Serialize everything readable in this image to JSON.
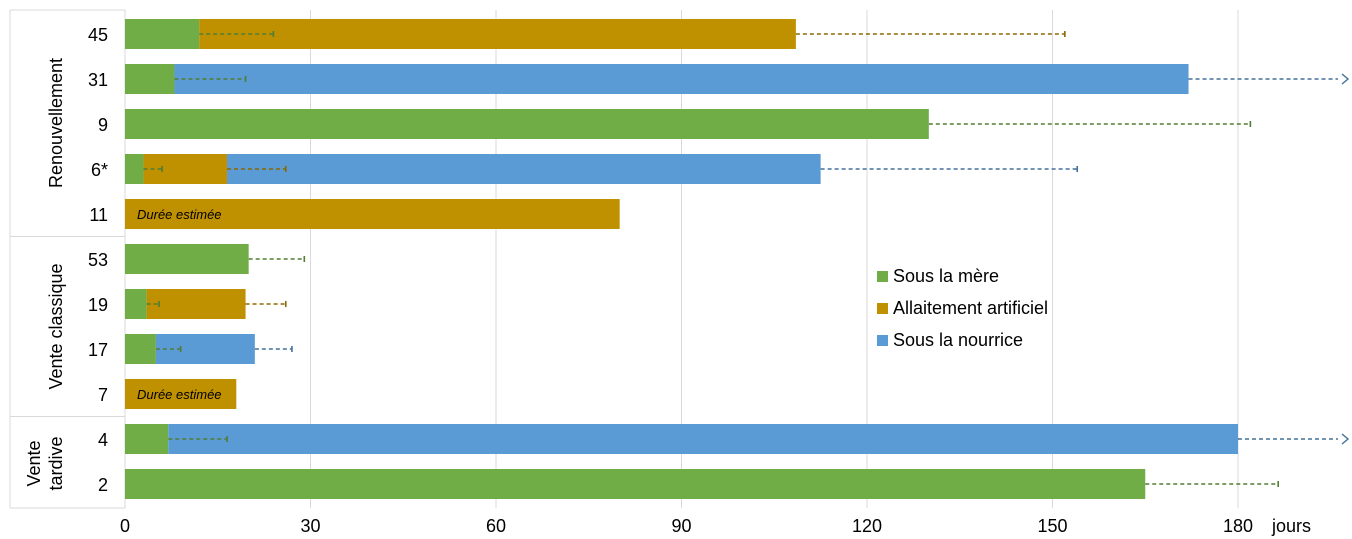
{
  "chart_data": {
    "type": "bar",
    "orientation": "horizontal",
    "stacked": true,
    "xlabel": "jours",
    "xlim": [
      0,
      180
    ],
    "xticks": [
      0,
      30,
      60,
      90,
      120,
      150,
      180
    ],
    "grid": true,
    "legend_position": "center-right",
    "colors": {
      "Sous la mère": "#70AD47",
      "Allaitement artificiel": "#BF9000",
      "Sous la nourrice": "#5B9BD5"
    },
    "series_names": [
      "Sous la mère",
      "Allaitement artificiel",
      "Sous la nourrice"
    ],
    "groups": [
      {
        "label": "Renouvellement",
        "rows": [
          0,
          1,
          2,
          3,
          4
        ]
      },
      {
        "label": "Vente classique",
        "rows": [
          5,
          6,
          7,
          8
        ]
      },
      {
        "label": "Vente tardive",
        "label_lines": [
          "Vente",
          "tardive"
        ],
        "rows": [
          9,
          10
        ]
      }
    ],
    "rows": [
      {
        "label": "45",
        "segments": [
          {
            "series": "Sous la mère",
            "value": 12
          },
          {
            "series": "Allaitement artificiel",
            "value": 96.5
          }
        ],
        "error_bars": [
          {
            "series": "Sous la mère",
            "to": 24
          },
          {
            "series": "Allaitement artificiel",
            "to": 152
          }
        ]
      },
      {
        "label": "31",
        "segments": [
          {
            "series": "Sous la mère",
            "value": 8
          },
          {
            "series": "Sous la nourrice",
            "value": 164
          }
        ],
        "error_bars": [
          {
            "series": "Sous la mère",
            "to": 19.5
          },
          {
            "series": "Sous la nourrice",
            "to": 198,
            "open_ended": true
          }
        ]
      },
      {
        "label": "9",
        "segments": [
          {
            "series": "Sous la mère",
            "value": 130
          }
        ],
        "error_bars": [
          {
            "series": "Sous la mère",
            "to": 182
          }
        ]
      },
      {
        "label": "6*",
        "segments": [
          {
            "series": "Sous la mère",
            "value": 3
          },
          {
            "series": "Allaitement artificiel",
            "value": 13.5
          },
          {
            "series": "Sous la nourrice",
            "value": 96
          }
        ],
        "error_bars": [
          {
            "series": "Sous la mère",
            "to": 6
          },
          {
            "series": "Allaitement artificiel",
            "to": 26
          },
          {
            "series": "Sous la nourrice",
            "to": 154
          }
        ]
      },
      {
        "label": "11",
        "note": "Durée estimée",
        "segments": [
          {
            "series": "Allaitement artificiel",
            "value": 80
          }
        ],
        "error_bars": []
      },
      {
        "label": "53",
        "segments": [
          {
            "series": "Sous la mère",
            "value": 20
          }
        ],
        "error_bars": [
          {
            "series": "Sous la mère",
            "to": 29
          }
        ]
      },
      {
        "label": "19",
        "segments": [
          {
            "series": "Sous la mère",
            "value": 3.5
          },
          {
            "series": "Allaitement artificiel",
            "value": 16
          }
        ],
        "error_bars": [
          {
            "series": "Sous la mère",
            "to": 5.5
          },
          {
            "series": "Allaitement artificiel",
            "to": 26
          }
        ]
      },
      {
        "label": "17",
        "segments": [
          {
            "series": "Sous la mère",
            "value": 5
          },
          {
            "series": "Sous la nourrice",
            "value": 16
          }
        ],
        "error_bars": [
          {
            "series": "Sous la mère",
            "to": 9
          },
          {
            "series": "Sous la nourrice",
            "to": 27
          }
        ]
      },
      {
        "label": "7",
        "note": "Durée estimée",
        "segments": [
          {
            "series": "Allaitement artificiel",
            "value": 18
          }
        ],
        "error_bars": []
      },
      {
        "label": "4",
        "segments": [
          {
            "series": "Sous la mère",
            "value": 7
          },
          {
            "series": "Sous la nourrice",
            "value": 173
          }
        ],
        "error_bars": [
          {
            "series": "Sous la mère",
            "to": 16.5
          },
          {
            "series": "Sous la nourrice",
            "to": 198,
            "open_ended": true
          }
        ]
      },
      {
        "label": "2",
        "segments": [
          {
            "series": "Sous la mère",
            "value": 165
          }
        ],
        "error_bars": [
          {
            "series": "Sous la mère",
            "to": 186.5
          }
        ]
      }
    ]
  }
}
